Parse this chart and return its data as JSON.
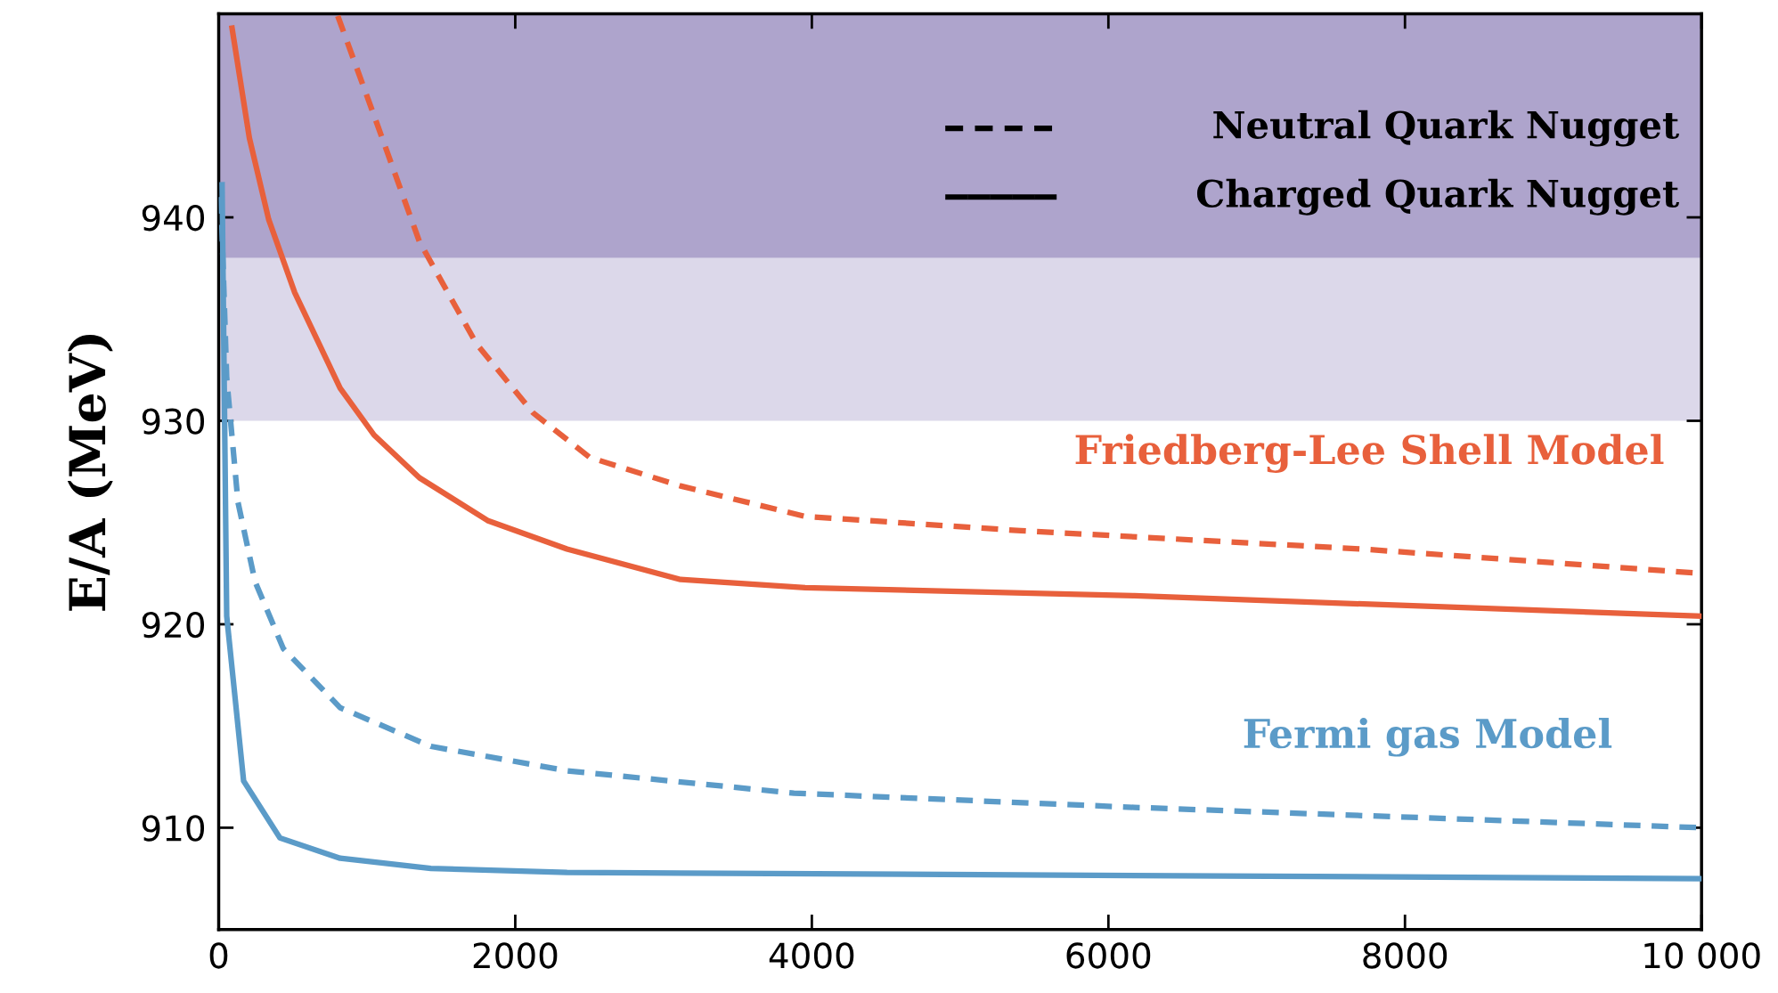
{
  "chart_data": {
    "type": "line",
    "ylabel": "E/A (MeV)",
    "xlim": [
      0,
      10000
    ],
    "xticks": [
      0,
      2000,
      4000,
      6000,
      8000,
      {
        "value": 10000,
        "label": "10 000"
      }
    ],
    "ylim": [
      905,
      950
    ],
    "yticks": [
      910,
      920,
      930,
      940
    ],
    "grid": false,
    "bands": [
      {
        "axis": "y",
        "from": 938,
        "to": 950,
        "color": "#aea4cc"
      },
      {
        "axis": "y",
        "from": 930,
        "to": 938,
        "color": "#dcd8ea"
      }
    ],
    "series": [
      {
        "color": "#e8603c",
        "line_style": "dashed",
        "x": [
          803,
          1048,
          1354,
          1737,
          2119,
          2502,
          3114,
          3955,
          5409,
          7705,
          10000
        ],
        "values": [
          949.9,
          945,
          938.8,
          933.8,
          930.4,
          928.2,
          926.8,
          925.3,
          924.6,
          923.7,
          922.5
        ]
      },
      {
        "color": "#e8603c",
        "line_style": "solid",
        "x": [
          90,
          207,
          337,
          513,
          819,
          1048,
          1354,
          1813,
          2349,
          3114,
          3955,
          6174,
          10000
        ],
        "values": [
          949.3,
          943.9,
          939.9,
          936.3,
          931.6,
          929.3,
          927.2,
          925.1,
          923.7,
          922.2,
          921.8,
          921.4,
          920.4
        ]
      },
      {
        "color": "#5b9bc8",
        "line_style": "dashed",
        "x": [
          15,
          54,
          130,
          245,
          436,
          819,
          1431,
          2349,
          3879,
          6174,
          10000
        ],
        "values": [
          941,
          932.1,
          926,
          922.1,
          918.8,
          915.9,
          914,
          912.8,
          911.7,
          911,
          910
        ]
      },
      {
        "color": "#5b9bc8",
        "line_style": "solid",
        "x": [
          23,
          54,
          168,
          413,
          819,
          1431,
          2349,
          10000
        ],
        "values": [
          941.6,
          920.4,
          912.3,
          909.5,
          908.5,
          908,
          907.8,
          907.5
        ]
      }
    ],
    "annotations": [
      "Neutral Quark Nugget",
      "Charged Quark Nugget",
      "Friedberg-Lee Shell Model",
      "Fermi gas Model"
    ]
  }
}
